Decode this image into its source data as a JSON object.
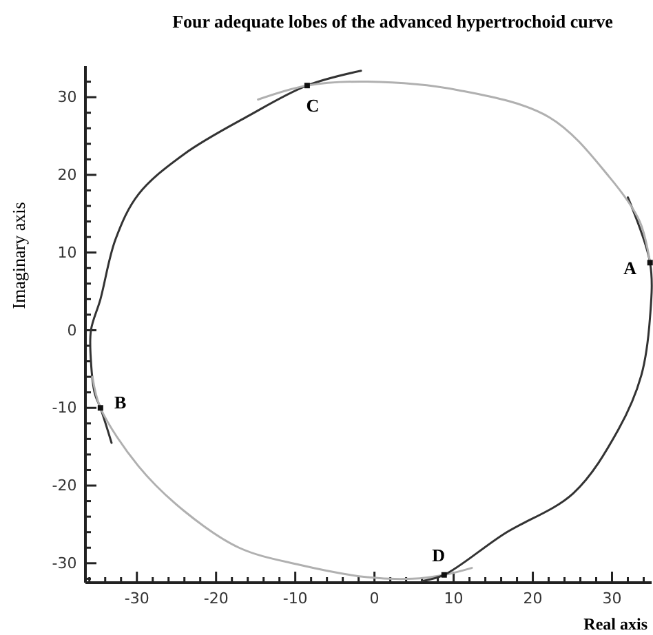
{
  "chart_data": {
    "type": "line",
    "title": "Four adequate lobes of the advanced hypertrochoid curve",
    "xlabel": "Real axis",
    "ylabel": "Imaginary axis",
    "grid": false,
    "marker": "none",
    "line_style": "solid",
    "xlim": [
      -36.5,
      35
    ],
    "ylim": [
      -32.5,
      34
    ],
    "xticks": [
      {
        "value": -36,
        "label": null
      },
      {
        "value": -34,
        "label": null
      },
      {
        "value": -32,
        "label": null
      },
      -30,
      {
        "value": -28,
        "label": null
      },
      {
        "value": -26,
        "label": null
      },
      {
        "value": -24,
        "label": null
      },
      {
        "value": -22,
        "label": null
      },
      -20,
      {
        "value": -18,
        "label": null
      },
      {
        "value": -16,
        "label": null
      },
      {
        "value": -14,
        "label": null
      },
      {
        "value": -12,
        "label": null
      },
      -10,
      {
        "value": -8,
        "label": null
      },
      {
        "value": -6,
        "label": null
      },
      {
        "value": -4,
        "label": null
      },
      {
        "value": -2,
        "label": null
      },
      0,
      {
        "value": 2,
        "label": null
      },
      {
        "value": 4,
        "label": null
      },
      {
        "value": 6,
        "label": null
      },
      {
        "value": 8,
        "label": null
      },
      10,
      {
        "value": 12,
        "label": null
      },
      {
        "value": 14,
        "label": null
      },
      {
        "value": 16,
        "label": null
      },
      {
        "value": 18,
        "label": null
      },
      20,
      {
        "value": 22,
        "label": null
      },
      {
        "value": 24,
        "label": null
      },
      {
        "value": 26,
        "label": null
      },
      {
        "value": 28,
        "label": null
      },
      30,
      {
        "value": 32,
        "label": null
      },
      {
        "value": 34,
        "label": null
      }
    ],
    "yticks": [
      {
        "value": -32,
        "label": null
      },
      -30,
      {
        "value": -28,
        "label": null
      },
      {
        "value": -26,
        "label": null
      },
      {
        "value": -24,
        "label": null
      },
      {
        "value": -22,
        "label": null
      },
      -20,
      {
        "value": -18,
        "label": null
      },
      {
        "value": -16,
        "label": null
      },
      {
        "value": -14,
        "label": null
      },
      {
        "value": -12,
        "label": null
      },
      -10,
      {
        "value": -8,
        "label": null
      },
      {
        "value": -6,
        "label": null
      },
      {
        "value": -4,
        "label": null
      },
      {
        "value": -2,
        "label": null
      },
      0,
      {
        "value": 2,
        "label": null
      },
      {
        "value": 4,
        "label": null
      },
      {
        "value": 6,
        "label": null
      },
      {
        "value": 8,
        "label": null
      },
      10,
      {
        "value": 12,
        "label": null
      },
      {
        "value": 14,
        "label": null
      },
      {
        "value": 16,
        "label": null
      },
      {
        "value": 18,
        "label": null
      },
      20,
      {
        "value": 22,
        "label": null
      },
      {
        "value": 24,
        "label": null
      },
      {
        "value": 26,
        "label": null
      },
      {
        "value": 28,
        "label": null
      },
      30,
      {
        "value": 32,
        "label": null
      }
    ],
    "series": [
      {
        "color": "#333333",
        "x": [
          -1.7,
          -8.5,
          -15.9,
          -24,
          -29.8,
          -32.7,
          -34.6,
          -35.8,
          -35.8,
          -35.3,
          -34.6,
          -33.2
        ],
        "values": [
          33.4,
          31.5,
          27.6,
          22.7,
          17.5,
          11.7,
          4,
          0,
          -4,
          -8.2,
          -10,
          -14.5
        ]
      },
      {
        "color": "#b0b0b0",
        "x": [
          -35.6,
          -34.6,
          -29.8,
          -24,
          -17.1,
          -9.5,
          -0.9,
          4.8,
          8.8,
          12.3
        ],
        "values": [
          -6,
          -10,
          -17.5,
          -23.3,
          -28,
          -30.2,
          -31.8,
          -32,
          -31.5,
          -30.6
        ]
      },
      {
        "color": "#333333",
        "x": [
          6,
          8.8,
          16.4,
          25.1,
          30.8,
          33.7,
          34.8,
          34.8,
          32
        ],
        "values": [
          -32.3,
          -31.5,
          -26.2,
          -21,
          -12.8,
          -5.8,
          1.7,
          8.7,
          17.1
        ]
      },
      {
        "color": "#b0b0b0",
        "x": [
          34.8,
          33.5,
          29.6,
          22.1,
          10.6,
          -0.9,
          -8.5,
          -14.7
        ],
        "values": [
          8.7,
          14,
          19.8,
          27.4,
          30.9,
          32,
          31.5,
          29.7
        ]
      },
      {
        "type": "scatter",
        "marker": "square",
        "color": "#111111",
        "x": [
          34.8,
          -34.6,
          -8.5,
          8.8
        ],
        "values": [
          8.7,
          -10,
          31.5,
          -31.5
        ]
      }
    ],
    "annotations": [
      {
        "text": "A",
        "x": 34.8,
        "y": 8.7
      },
      {
        "text": "B",
        "x": -34.6,
        "y": -10
      },
      {
        "text": "C",
        "x": -8.5,
        "y": 31.5
      },
      {
        "text": "D",
        "x": 8.8,
        "y": -31.5
      }
    ]
  }
}
